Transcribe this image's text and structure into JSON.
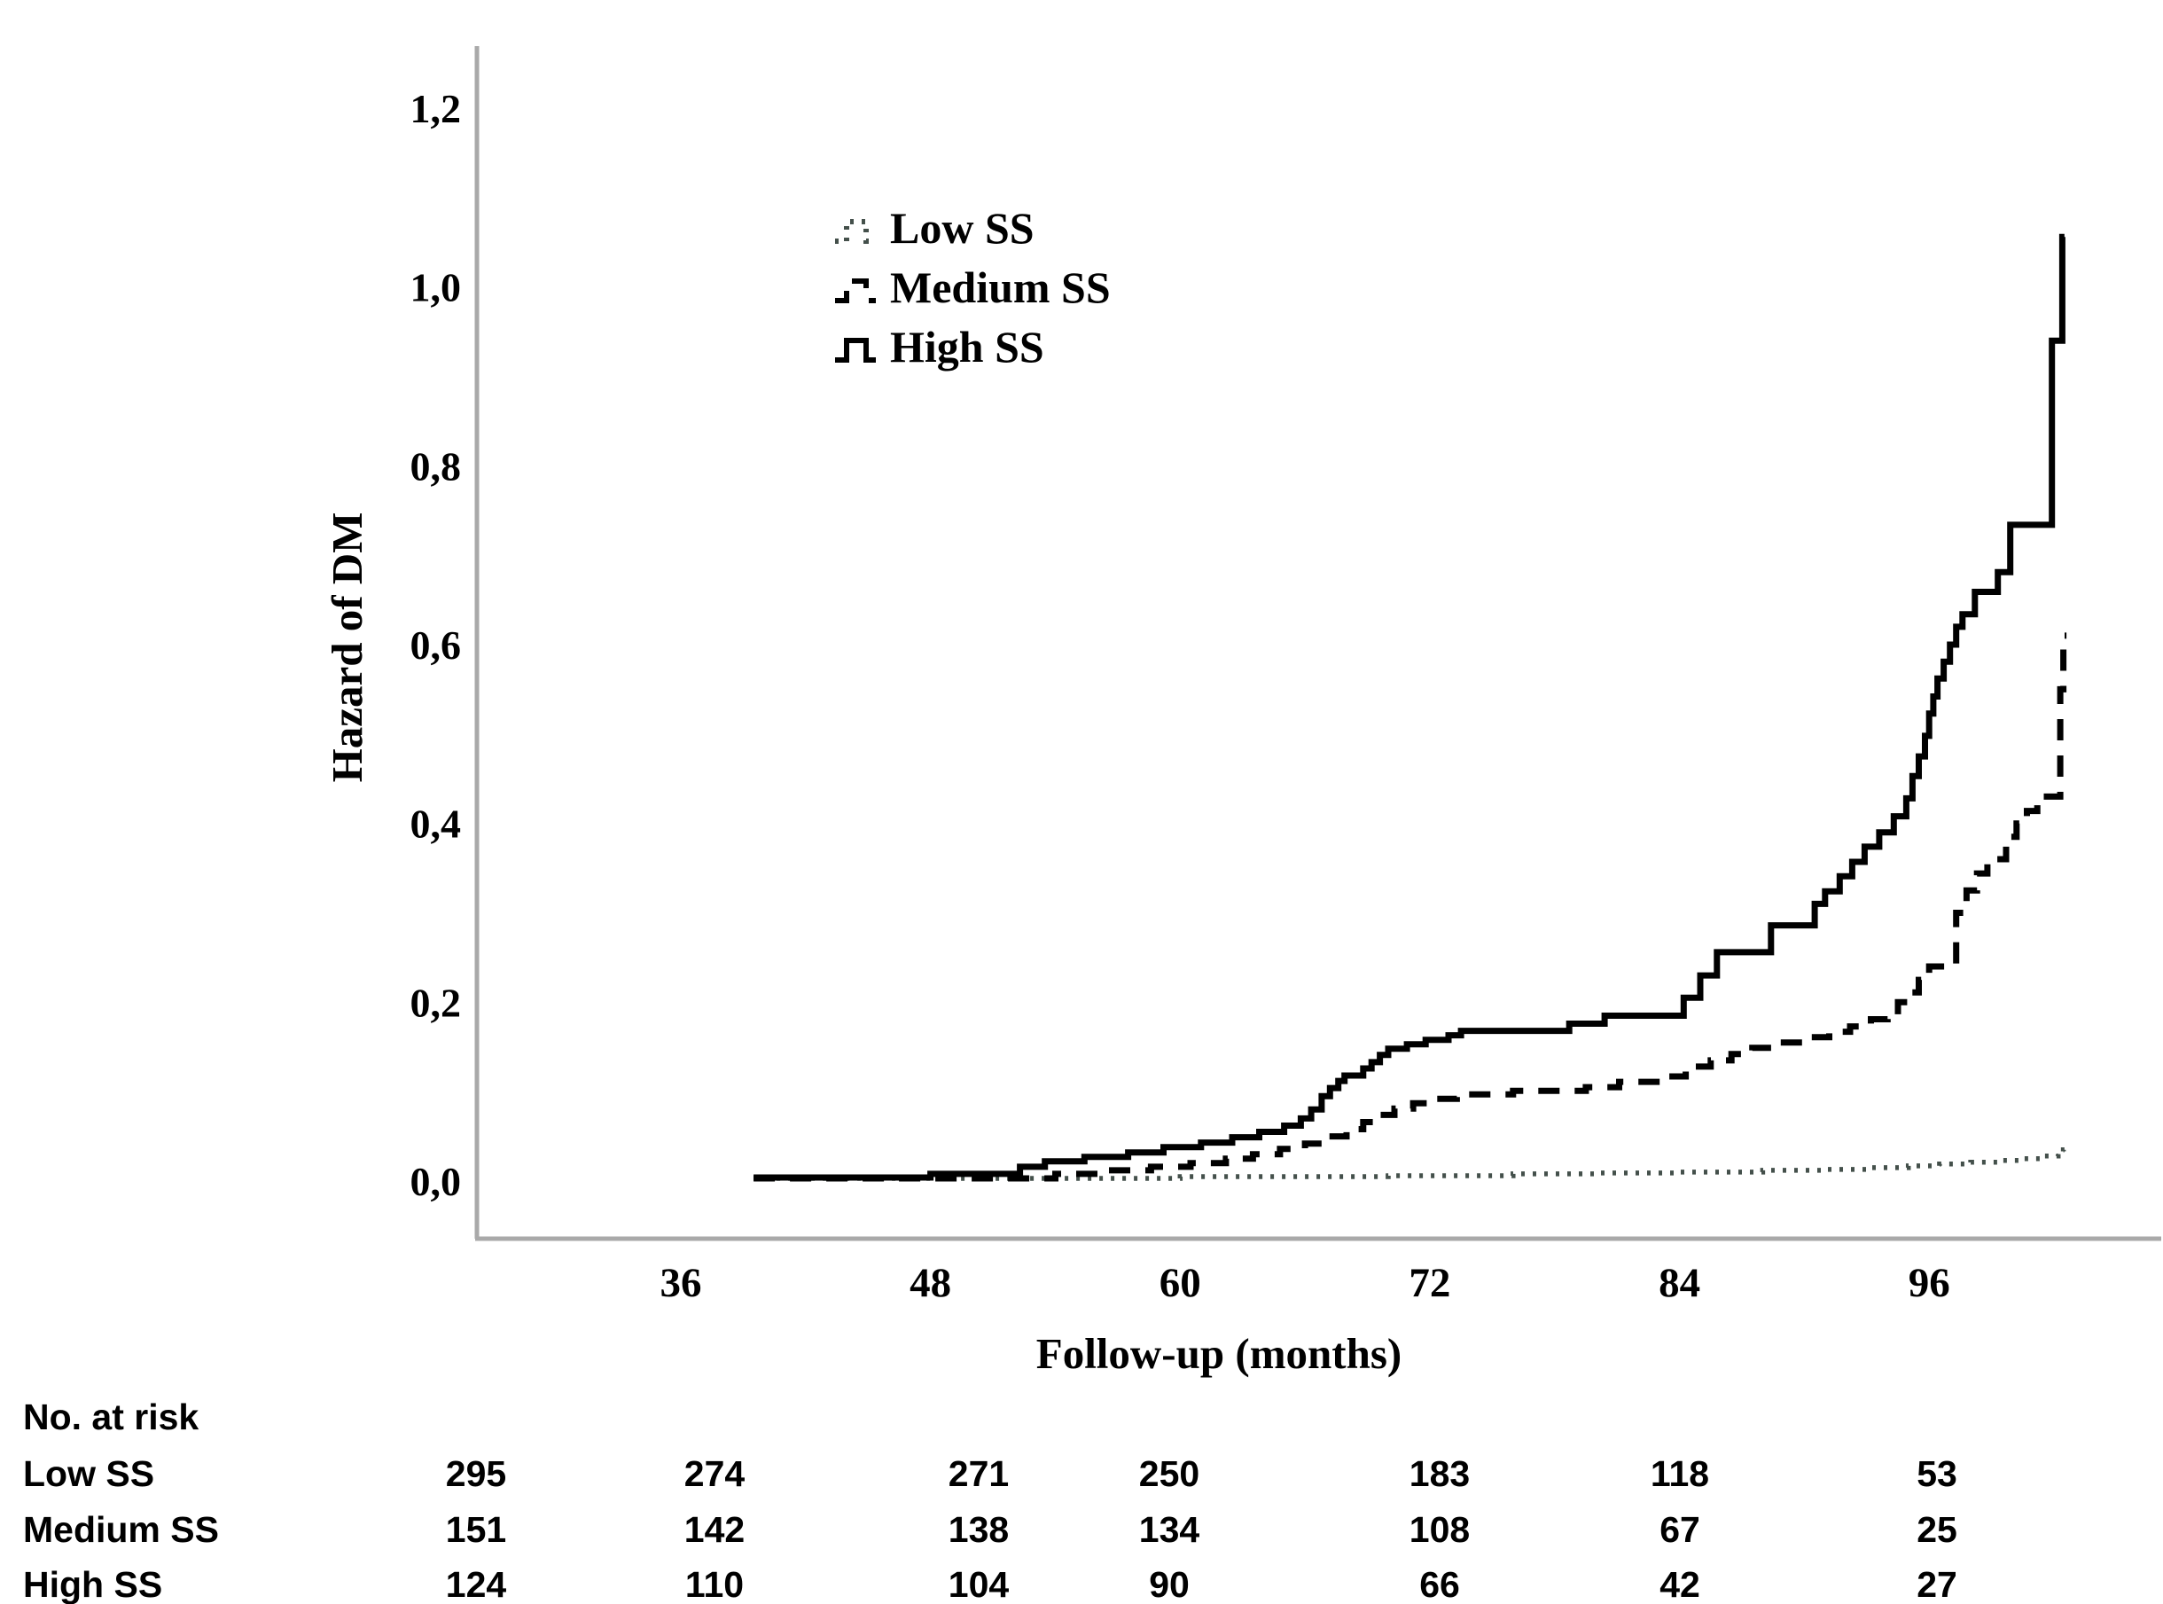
{
  "figure": {
    "background": "#ffffff",
    "axis_color": "#a9a9a9",
    "curve_color": "#000000",
    "dotted_curve_color": "#44504b"
  },
  "chart_data": {
    "type": "line",
    "subtype": "step-function-cumulative-hazard",
    "title": "",
    "xlabel": "Follow-up (months)",
    "ylabel": "Hazard of DM",
    "xlim": [
      26,
      106
    ],
    "ylim": [
      0,
      1.2
    ],
    "grid": false,
    "legend_position": "inside-upper-left",
    "xticks": [
      {
        "label": "36",
        "value": 36
      },
      {
        "label": "48",
        "value": 48
      },
      {
        "label": "60",
        "value": 60
      },
      {
        "label": "72",
        "value": 72
      },
      {
        "label": "84",
        "value": 84
      },
      {
        "label": "96",
        "value": 96
      }
    ],
    "yticks": [
      {
        "label": "0,0",
        "value": 0.0
      },
      {
        "label": "0,2",
        "value": 0.2
      },
      {
        "label": "0,4",
        "value": 0.4
      },
      {
        "label": "0,6",
        "value": 0.6
      },
      {
        "label": "0,8",
        "value": 0.8
      },
      {
        "label": "1,0",
        "value": 1.0
      },
      {
        "label": "1,2",
        "value": 1.2
      }
    ],
    "series": [
      {
        "name": "Low SS",
        "style": "dotted",
        "color": "#44504b",
        "end_month": 102.5,
        "points": [
          [
            39.5,
            0.003
          ],
          [
            60,
            0.005
          ],
          [
            70,
            0.006
          ],
          [
            76,
            0.008
          ],
          [
            80,
            0.009
          ],
          [
            84,
            0.01
          ],
          [
            88,
            0.012
          ],
          [
            91,
            0.013
          ],
          [
            93,
            0.015
          ],
          [
            95,
            0.017
          ],
          [
            96.5,
            0.019
          ],
          [
            98,
            0.021
          ],
          [
            99.5,
            0.023
          ],
          [
            100.5,
            0.025
          ],
          [
            101.5,
            0.028
          ],
          [
            102.2,
            0.031
          ],
          [
            102.45,
            0.035
          ]
        ]
      },
      {
        "name": "Medium SS",
        "style": "dashed",
        "color": "#000000",
        "end_month": 102.6,
        "points": [
          [
            39.5,
            0.003
          ],
          [
            54,
            0.008
          ],
          [
            56.3,
            0.012
          ],
          [
            58.6,
            0.016
          ],
          [
            60.5,
            0.02
          ],
          [
            62.2,
            0.025
          ],
          [
            63.5,
            0.03
          ],
          [
            64.8,
            0.036
          ],
          [
            66,
            0.042
          ],
          [
            67,
            0.05
          ],
          [
            68,
            0.058
          ],
          [
            68.8,
            0.066
          ],
          [
            69.5,
            0.074
          ],
          [
            70.3,
            0.081
          ],
          [
            71.2,
            0.087
          ],
          [
            72.3,
            0.092
          ],
          [
            73.3,
            0.097
          ],
          [
            76,
            0.101
          ],
          [
            79.5,
            0.105
          ],
          [
            81.1,
            0.111
          ],
          [
            83.5,
            0.117
          ],
          [
            84.3,
            0.128
          ],
          [
            85.5,
            0.135
          ],
          [
            86.5,
            0.142
          ],
          [
            87.5,
            0.149
          ],
          [
            88.7,
            0.155
          ],
          [
            90,
            0.161
          ],
          [
            91.2,
            0.167
          ],
          [
            92.2,
            0.173
          ],
          [
            93.2,
            0.181
          ],
          [
            94,
            0.19
          ],
          [
            94.5,
            0.2
          ],
          [
            95,
            0.211
          ],
          [
            95.5,
            0.225
          ],
          [
            96,
            0.24
          ],
          [
            97.3,
            0.3
          ],
          [
            97.8,
            0.325
          ],
          [
            98.3,
            0.344
          ],
          [
            98.8,
            0.36
          ],
          [
            99.7,
            0.385
          ],
          [
            100.2,
            0.4
          ],
          [
            100.7,
            0.414
          ],
          [
            101.2,
            0.43
          ],
          [
            102.3,
            0.55
          ],
          [
            102.45,
            0.61
          ]
        ]
      },
      {
        "name": "High SS",
        "style": "solid",
        "color": "#000000",
        "end_month": 102.5,
        "points": [
          [
            39.5,
            0.004
          ],
          [
            48,
            0.008
          ],
          [
            52.3,
            0.016
          ],
          [
            53.5,
            0.022
          ],
          [
            55.4,
            0.027
          ],
          [
            57.5,
            0.032
          ],
          [
            59.2,
            0.038
          ],
          [
            61,
            0.043
          ],
          [
            62.5,
            0.049
          ],
          [
            63.8,
            0.055
          ],
          [
            65,
            0.062
          ],
          [
            65.8,
            0.07
          ],
          [
            66.3,
            0.08
          ],
          [
            66.8,
            0.095
          ],
          [
            67.2,
            0.104
          ],
          [
            67.6,
            0.112
          ],
          [
            67.9,
            0.118
          ],
          [
            68.8,
            0.126
          ],
          [
            69.2,
            0.133
          ],
          [
            69.6,
            0.141
          ],
          [
            70,
            0.148
          ],
          [
            70.9,
            0.153
          ],
          [
            71.8,
            0.158
          ],
          [
            72.9,
            0.163
          ],
          [
            73.5,
            0.168
          ],
          [
            78.7,
            0.176
          ],
          [
            80.4,
            0.185
          ],
          [
            84.2,
            0.205
          ],
          [
            85,
            0.23
          ],
          [
            85.8,
            0.256
          ],
          [
            88.4,
            0.286
          ],
          [
            90.5,
            0.31
          ],
          [
            91,
            0.324
          ],
          [
            91.7,
            0.341
          ],
          [
            92.3,
            0.357
          ],
          [
            92.9,
            0.374
          ],
          [
            93.6,
            0.39
          ],
          [
            94.3,
            0.408
          ],
          [
            94.9,
            0.428
          ],
          [
            95.2,
            0.453
          ],
          [
            95.5,
            0.475
          ],
          [
            95.8,
            0.498
          ],
          [
            96,
            0.523
          ],
          [
            96.2,
            0.542
          ],
          [
            96.4,
            0.562
          ],
          [
            96.7,
            0.581
          ],
          [
            97,
            0.6
          ],
          [
            97.3,
            0.62
          ],
          [
            97.6,
            0.634
          ],
          [
            98.2,
            0.659
          ],
          [
            99.3,
            0.681
          ],
          [
            99.9,
            0.734
          ],
          [
            101.9,
            0.94
          ],
          [
            102.4,
            1.056
          ]
        ]
      }
    ]
  },
  "at_risk": {
    "title": "No. at risk",
    "rows": [
      {
        "label": "Low SS",
        "counts": [
          "295",
          "274",
          "271",
          "250",
          "183",
          "118",
          "53"
        ]
      },
      {
        "label": "Medium SS",
        "counts": [
          "151",
          "142",
          "138",
          "134",
          "108",
          "67",
          "25"
        ]
      },
      {
        "label": "High SS",
        "counts": [
          "124",
          "110",
          "104",
          "90",
          "66",
          "42",
          "27"
        ]
      }
    ]
  }
}
